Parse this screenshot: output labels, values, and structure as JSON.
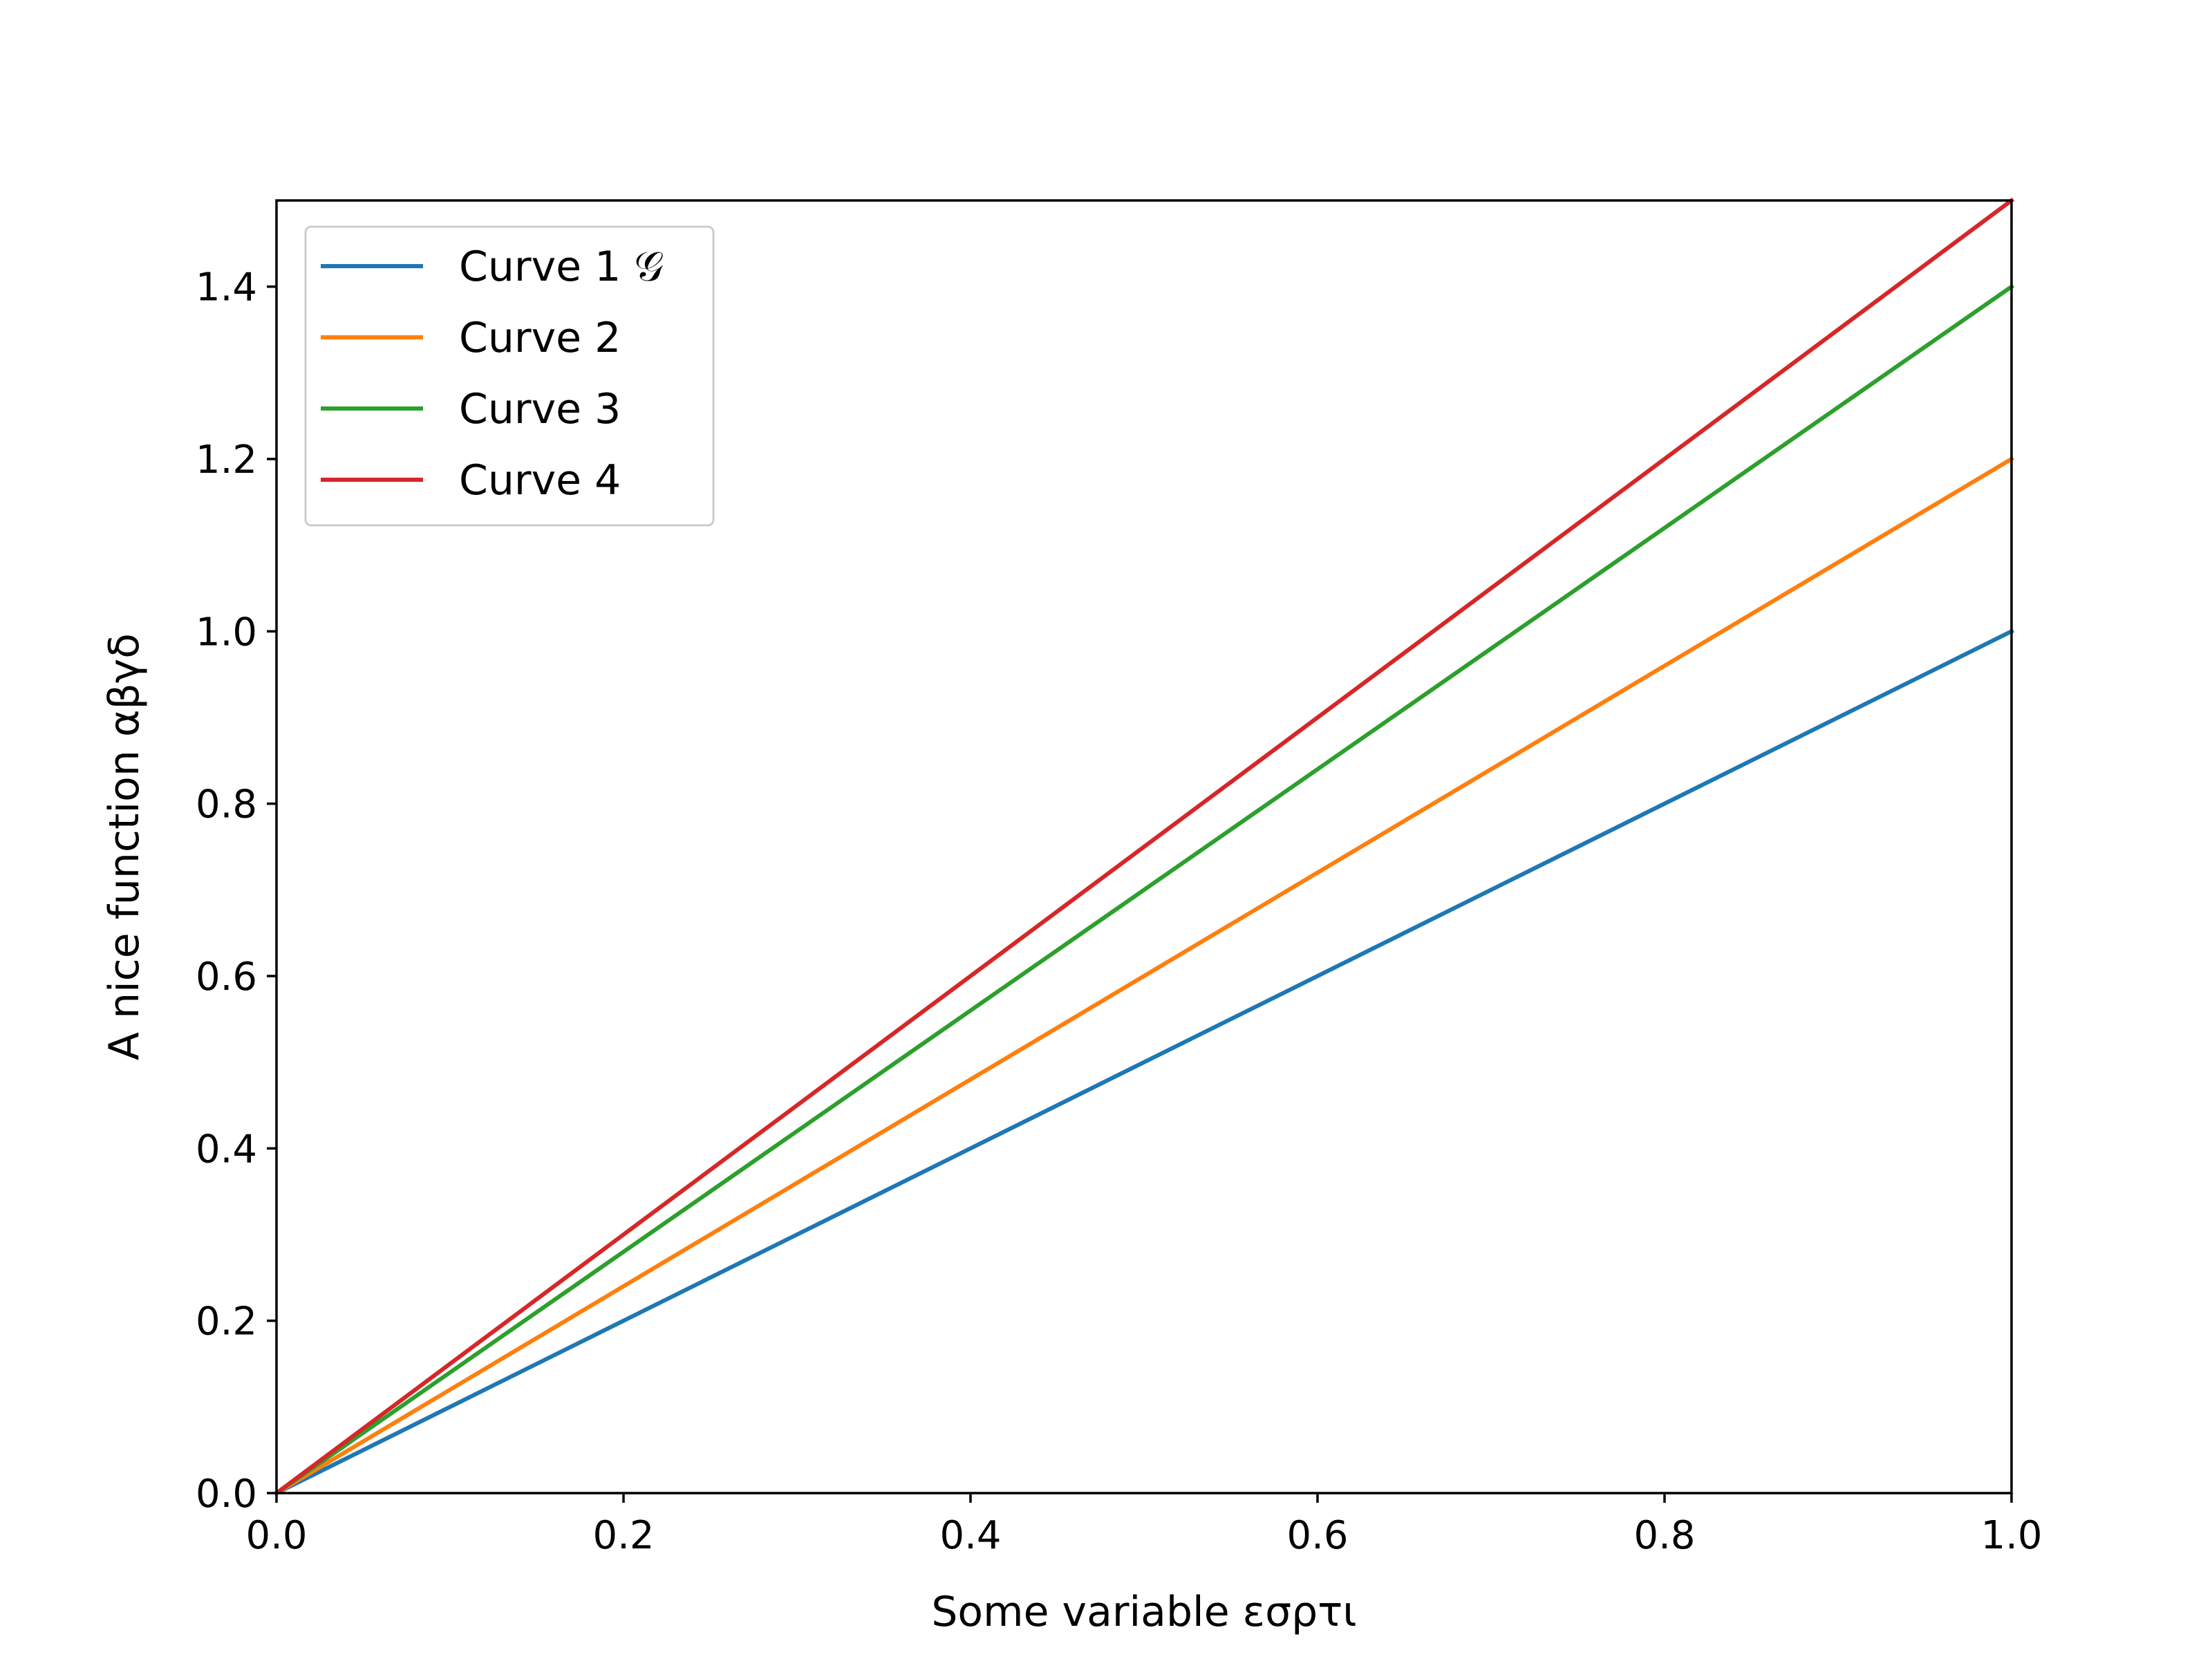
{
  "chart_data": {
    "type": "line",
    "title": "",
    "xlabel": "Some variable εσρτι",
    "ylabel": "A nice function αβγδ",
    "xlim": [
      0.0,
      1.0
    ],
    "ylim": [
      0.0,
      1.5
    ],
    "xticks": [
      "0.0",
      "0.2",
      "0.4",
      "0.6",
      "0.8",
      "1.0"
    ],
    "yticks": [
      "0.0",
      "0.2",
      "0.4",
      "0.6",
      "0.8",
      "1.0",
      "1.2",
      "1.4"
    ],
    "grid": false,
    "legend_position": "top-left",
    "x": [
      0.0,
      1.0
    ],
    "series": [
      {
        "name": "Curve 1 𝒢",
        "color": "#1f77b4",
        "values": [
          0.0,
          1.0
        ]
      },
      {
        "name": "Curve 2",
        "color": "#ff7f0e",
        "values": [
          0.0,
          1.2
        ]
      },
      {
        "name": "Curve 3",
        "color": "#2ca02c",
        "values": [
          0.0,
          1.4
        ]
      },
      {
        "name": "Curve 4",
        "color": "#d62728",
        "values": [
          0.0,
          1.5
        ]
      }
    ]
  }
}
